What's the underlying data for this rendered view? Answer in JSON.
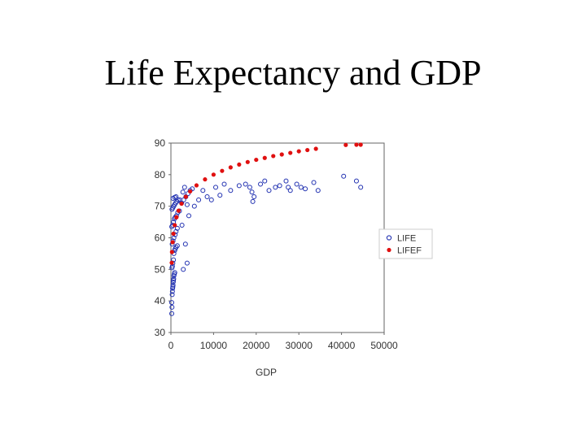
{
  "slide": {
    "title": "Life Expectancy and GDP"
  },
  "chart_data": {
    "type": "scatter",
    "title": "",
    "xlabel": "GDP",
    "ylabel": "",
    "xlim": [
      0,
      50000
    ],
    "ylim": [
      30,
      90
    ],
    "x_ticks": [
      "0",
      "10000",
      "20000",
      "30000",
      "40000",
      "50000"
    ],
    "y_ticks": [
      "30",
      "40",
      "50",
      "60",
      "70",
      "80",
      "90"
    ],
    "grid": false,
    "legend": "right",
    "series": [
      {
        "name": "LIFE",
        "marker": "open-circle",
        "color": "#1f2fb0",
        "points": [
          [
            200,
            36
          ],
          [
            250,
            38
          ],
          [
            150,
            39.5
          ],
          [
            300,
            42
          ],
          [
            350,
            43
          ],
          [
            400,
            44
          ],
          [
            450,
            44.5
          ],
          [
            500,
            45
          ],
          [
            550,
            46
          ],
          [
            600,
            46.5
          ],
          [
            650,
            47
          ],
          [
            700,
            48
          ],
          [
            800,
            48.5
          ],
          [
            900,
            49
          ],
          [
            250,
            50.5
          ],
          [
            350,
            51
          ],
          [
            450,
            52
          ],
          [
            600,
            53
          ],
          [
            700,
            55
          ],
          [
            900,
            56
          ],
          [
            1000,
            56.5
          ],
          [
            1200,
            57
          ],
          [
            1500,
            57.5
          ],
          [
            300,
            58
          ],
          [
            500,
            59
          ],
          [
            700,
            60
          ],
          [
            1000,
            61
          ],
          [
            1200,
            62
          ],
          [
            1500,
            63
          ],
          [
            200,
            63.5
          ],
          [
            400,
            64
          ],
          [
            600,
            65
          ],
          [
            800,
            66
          ],
          [
            1000,
            66.5
          ],
          [
            1300,
            67
          ],
          [
            1600,
            68
          ],
          [
            2000,
            68.5
          ],
          [
            250,
            69
          ],
          [
            450,
            69.5
          ],
          [
            650,
            70
          ],
          [
            850,
            70.5
          ],
          [
            1100,
            71
          ],
          [
            1400,
            71.5
          ],
          [
            1700,
            72
          ],
          [
            2100,
            72
          ],
          [
            500,
            72.5
          ],
          [
            900,
            72.8
          ],
          [
            1200,
            73
          ],
          [
            2500,
            71
          ],
          [
            3000,
            72
          ],
          [
            3500,
            73
          ],
          [
            4000,
            74
          ],
          [
            4500,
            75
          ],
          [
            5000,
            75.5
          ],
          [
            3200,
            76
          ],
          [
            2800,
            74.5
          ],
          [
            3800,
            70.5
          ],
          [
            4200,
            67
          ],
          [
            2600,
            64
          ],
          [
            3400,
            58
          ],
          [
            2900,
            50
          ],
          [
            3800,
            52
          ],
          [
            5500,
            70
          ],
          [
            6500,
            72
          ],
          [
            7500,
            75
          ],
          [
            8500,
            73
          ],
          [
            9500,
            72
          ],
          [
            10500,
            76
          ],
          [
            11500,
            73.5
          ],
          [
            12500,
            77
          ],
          [
            14000,
            75
          ],
          [
            16000,
            76.5
          ],
          [
            17500,
            77
          ],
          [
            18500,
            76
          ],
          [
            19000,
            74.5
          ],
          [
            19500,
            73
          ],
          [
            19200,
            71.5
          ],
          [
            21000,
            77
          ],
          [
            22000,
            78
          ],
          [
            23000,
            75
          ],
          [
            24500,
            76
          ],
          [
            25500,
            76.5
          ],
          [
            27000,
            78
          ],
          [
            27500,
            76
          ],
          [
            28000,
            75
          ],
          [
            29500,
            77
          ],
          [
            30500,
            76
          ],
          [
            31500,
            75.5
          ],
          [
            33500,
            77.5
          ],
          [
            34500,
            75
          ],
          [
            40500,
            79.5
          ],
          [
            43500,
            78
          ],
          [
            44500,
            76
          ]
        ]
      },
      {
        "name": "LIFEF",
        "marker": "filled-circle",
        "color": "#e01010",
        "model": "b0 + b1*ln(GDP)",
        "points": [
          [
            150,
            52.1
          ],
          [
            250,
            55.5
          ],
          [
            400,
            58.6
          ],
          [
            600,
            61.3
          ],
          [
            900,
            64.0
          ],
          [
            1300,
            66.5
          ],
          [
            1800,
            68.6
          ],
          [
            2500,
            70.8
          ],
          [
            3500,
            73.0
          ],
          [
            4500,
            74.7
          ],
          [
            6000,
            76.6
          ],
          [
            8000,
            78.5
          ],
          [
            10000,
            80.0
          ],
          [
            12000,
            81.2
          ],
          [
            14000,
            82.3
          ],
          [
            16000,
            83.2
          ],
          [
            18000,
            84.0
          ],
          [
            20000,
            84.7
          ],
          [
            22000,
            85.3
          ],
          [
            24000,
            85.9
          ],
          [
            26000,
            86.4
          ],
          [
            28000,
            86.9
          ],
          [
            30000,
            87.4
          ],
          [
            32000,
            87.8
          ],
          [
            34000,
            88.2
          ],
          [
            41000,
            89.4
          ],
          [
            43500,
            89.8
          ],
          [
            44500,
            89.9
          ]
        ]
      }
    ]
  }
}
